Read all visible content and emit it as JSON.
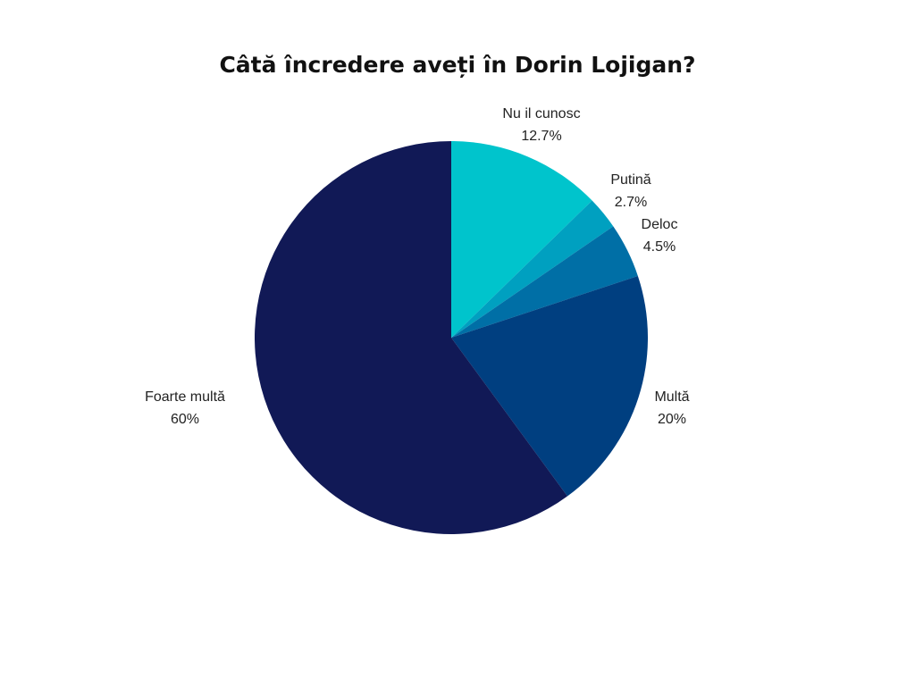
{
  "chart_data": {
    "type": "pie",
    "title": "Câtă încredere aveți în Dorin Lojigan?",
    "start_angle_deg": 0,
    "direction": "clockwise",
    "slices": [
      {
        "label": "Nu il cunosc",
        "value": 12.7,
        "value_label": "12.7%",
        "color": "#00C4CC"
      },
      {
        "label": "Putină",
        "value": 2.7,
        "value_label": "2.7%",
        "color": "#00A0C0"
      },
      {
        "label": "Deloc",
        "value": 4.5,
        "value_label": "4.5%",
        "color": "#006FA6"
      },
      {
        "label": "Multă",
        "value": 20,
        "value_label": "20%",
        "color": "#003F80"
      },
      {
        "label": "Foarte multă",
        "value": 60,
        "value_label": "60%",
        "color": "#111956"
      }
    ]
  }
}
